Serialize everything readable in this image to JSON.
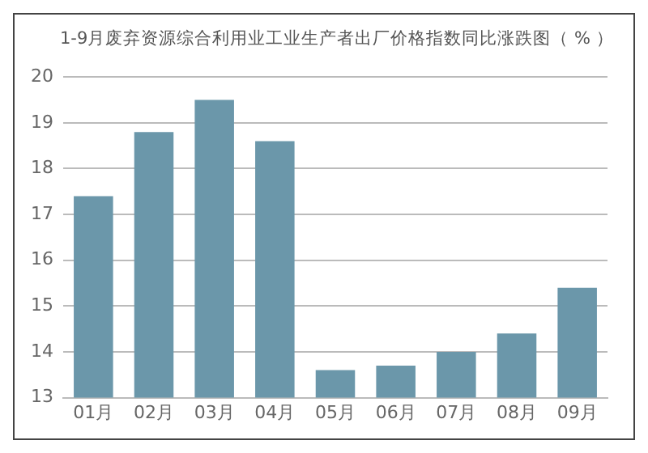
{
  "chart_data": {
    "type": "bar",
    "title": "1-9月废弃资源综合利用业工业生产者出厂价格指数同比涨跌图（ % ）",
    "categories": [
      "01月",
      "02月",
      "03月",
      "04月",
      "05月",
      "06月",
      "07月",
      "08月",
      "09月"
    ],
    "values": [
      17.4,
      18.8,
      19.5,
      18.6,
      13.6,
      13.7,
      14.0,
      14.4,
      15.4
    ],
    "color": "#6b97aa",
    "ylim": [
      13,
      20
    ],
    "yticks": [
      13,
      14,
      15,
      16,
      17,
      18,
      19,
      20
    ],
    "grid": "y",
    "legend": false
  }
}
